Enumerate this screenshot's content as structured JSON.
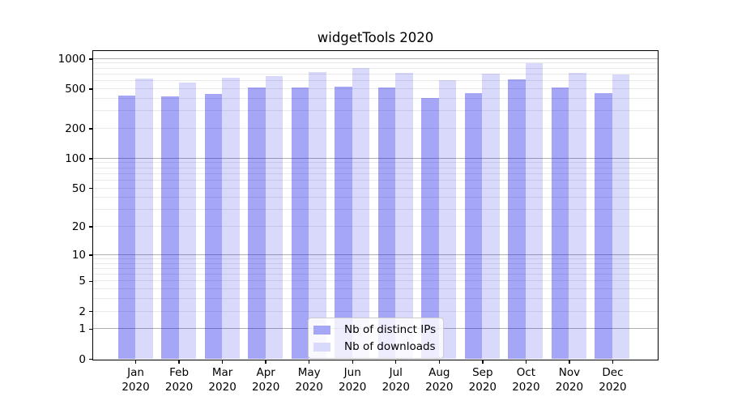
{
  "chart_data": {
    "type": "bar",
    "title": "widgetTools 2020",
    "xlabel": "",
    "ylabel": "",
    "categories": [
      "Jan",
      "Feb",
      "Mar",
      "Apr",
      "May",
      "Jun",
      "Jul",
      "Aug",
      "Sep",
      "Oct",
      "Nov",
      "Dec"
    ],
    "category_year": "2020",
    "series": [
      {
        "name": "Nb of distinct IPs",
        "fill": "rgba(0,0,230,0.35)",
        "legend_color": "#a6a6f7",
        "values": [
          430,
          415,
          445,
          510,
          510,
          525,
          515,
          400,
          450,
          615,
          510,
          455
        ]
      },
      {
        "name": "Nb of downloads",
        "fill": "rgba(0,0,230,0.15)",
        "legend_color": "#d9d9fb",
        "values": [
          635,
          570,
          645,
          665,
          730,
          800,
          720,
          610,
          705,
          900,
          725,
          695
        ]
      }
    ],
    "yscale": "log1p",
    "y_ticks": [
      0,
      1,
      2,
      5,
      10,
      20,
      50,
      100,
      200,
      500,
      1000
    ],
    "ylim": [
      0,
      1190
    ],
    "grid": {
      "major_values": [
        1,
        10,
        100,
        1000
      ],
      "minor_values": [
        2,
        3,
        4,
        5,
        6,
        7,
        8,
        9,
        20,
        30,
        40,
        50,
        60,
        70,
        80,
        90,
        200,
        300,
        400,
        500,
        600,
        700,
        800,
        900
      ],
      "major_color": "#b0b0b0",
      "minor_color": "#e9e9e9"
    },
    "legend": {
      "position": "lower center",
      "entries": [
        "Nb of distinct IPs",
        "Nb of downloads"
      ]
    },
    "colors": {
      "bar_dark_flat": "#a6a6f7",
      "bar_light_flat": "#d9d9fb",
      "axis": "#000000"
    }
  }
}
